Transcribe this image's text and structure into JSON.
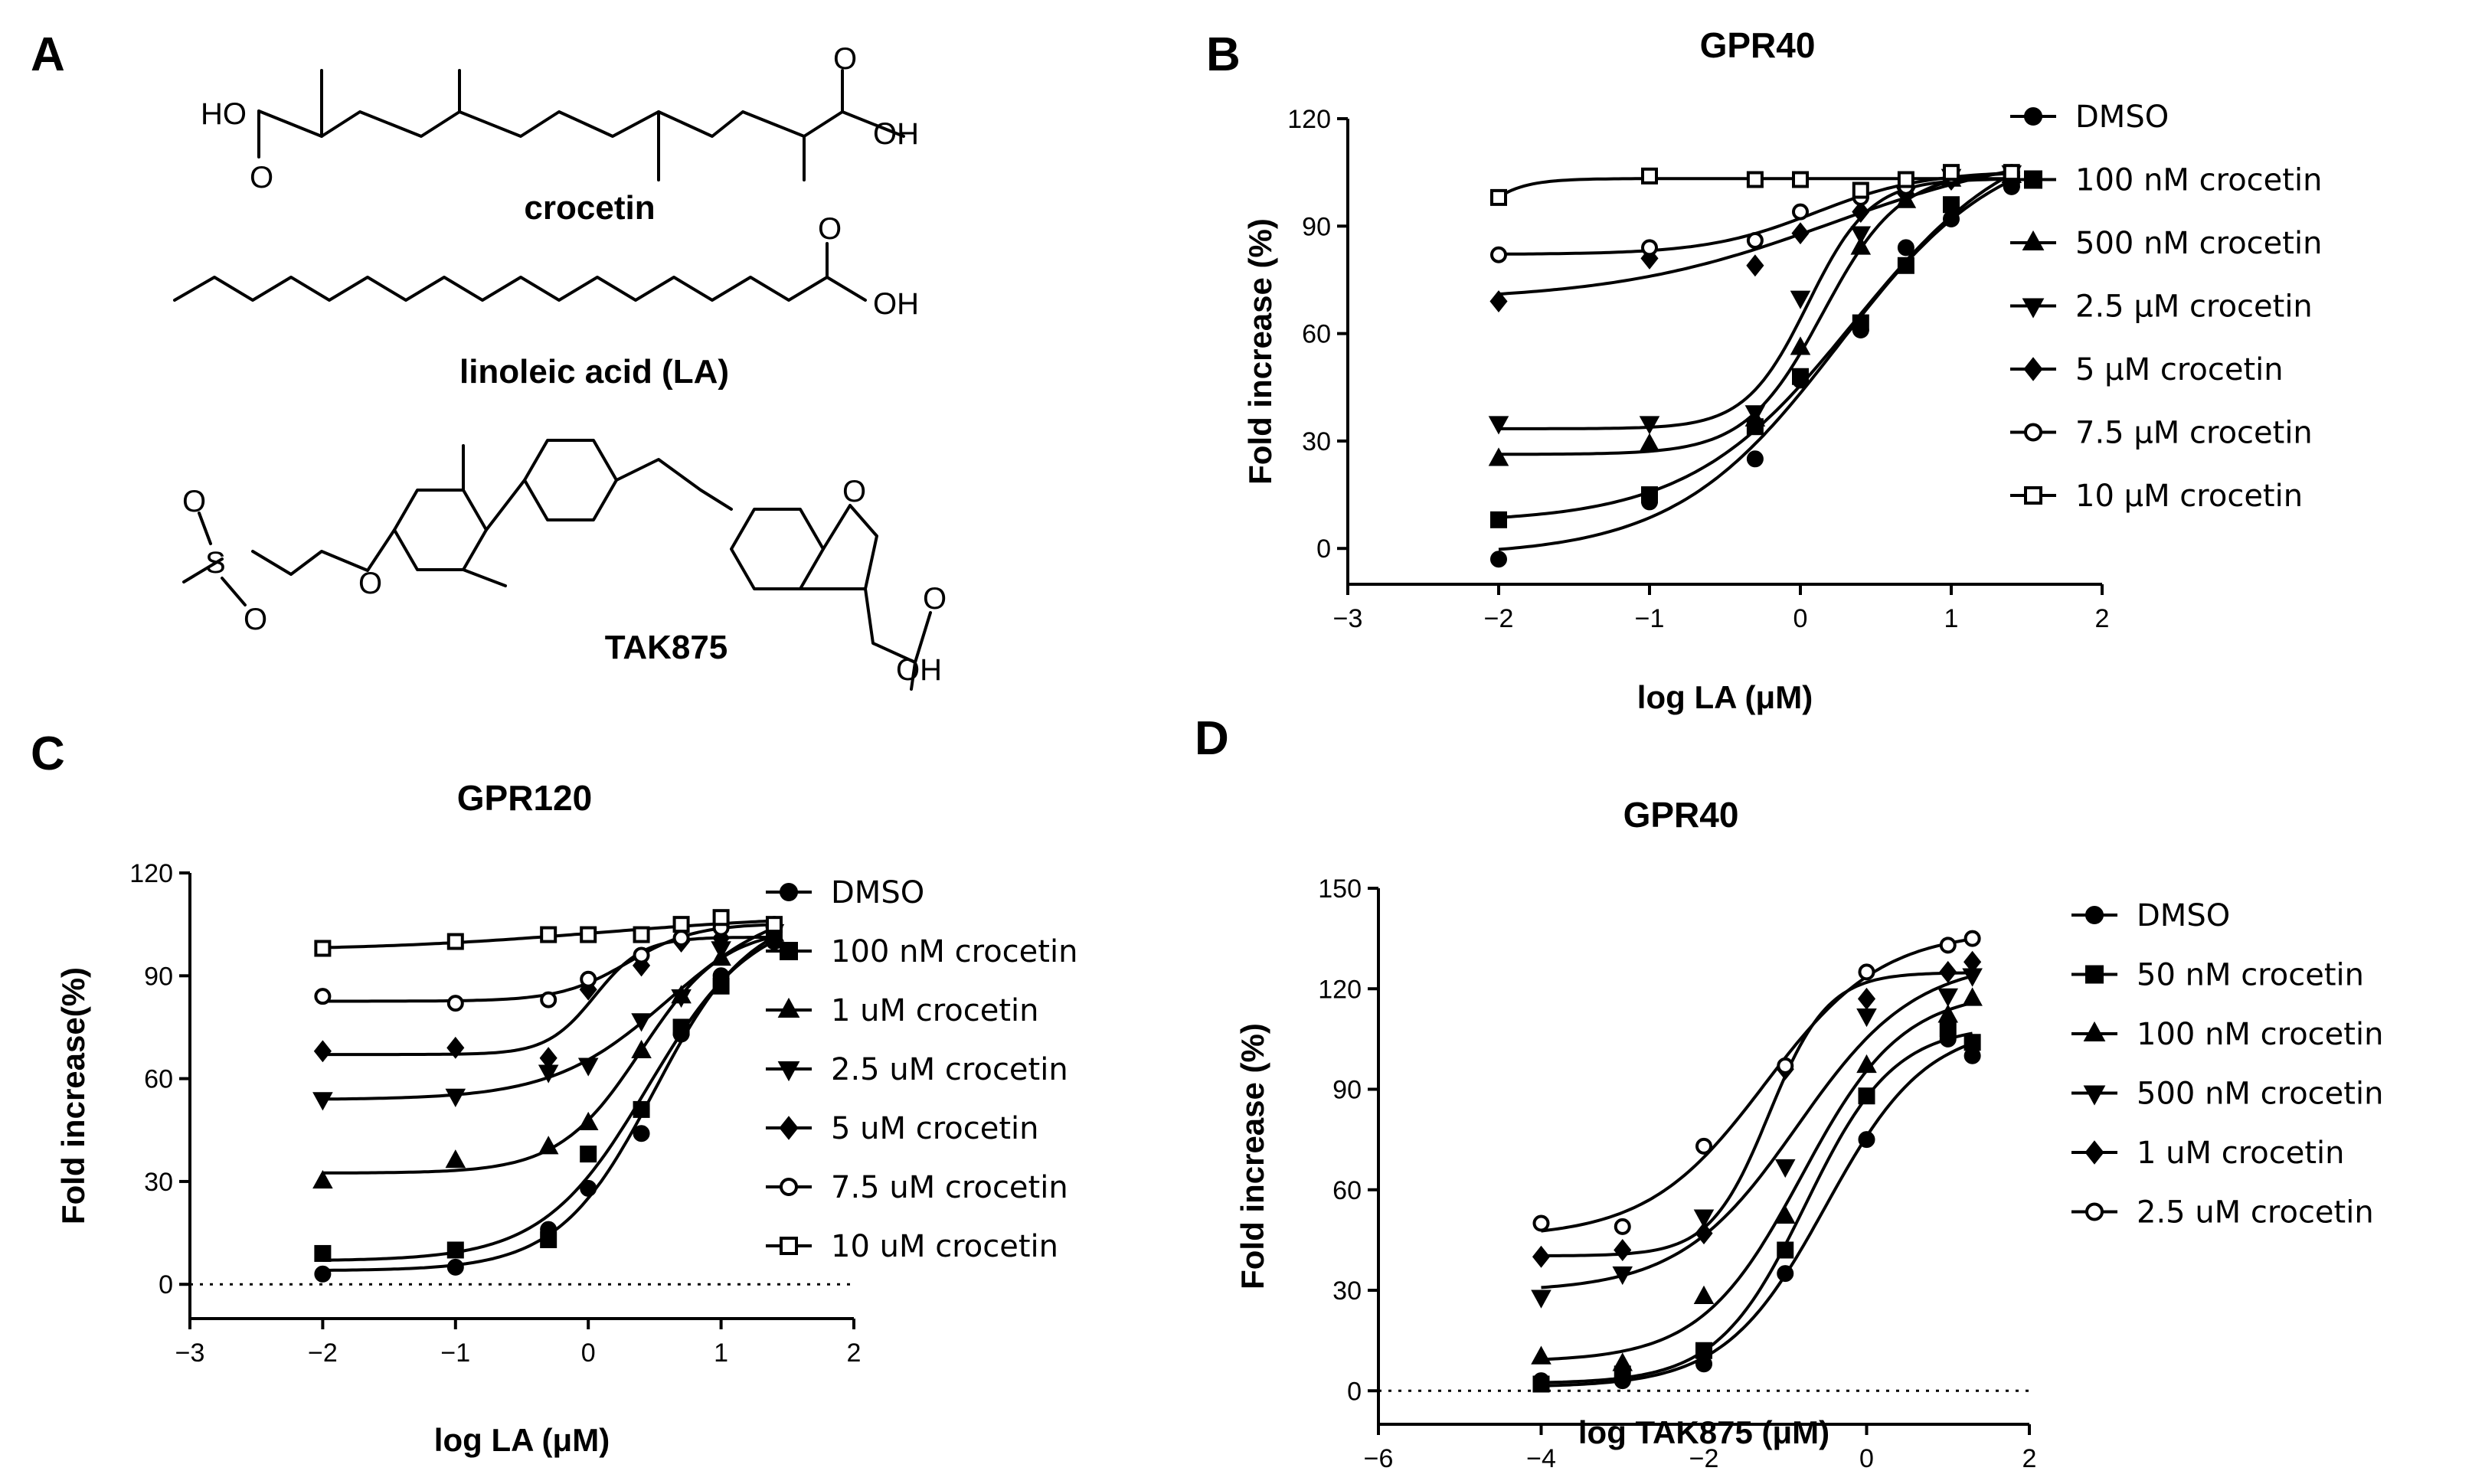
{
  "panels": {
    "a": {
      "letter": "A",
      "compounds": {
        "crocetin": {
          "name": "crocetin",
          "atoms": {
            "ho": "HO",
            "o_left": "O",
            "o_right": "O",
            "oh": "OH"
          }
        },
        "la": {
          "name": "linoleic acid (LA)",
          "atoms": {
            "o": "O",
            "oh": "OH"
          }
        },
        "tak": {
          "name": "TAK875",
          "atoms": {
            "s": "S",
            "o1": "O",
            "o2": "O",
            "o_ether": "O",
            "o_ring": "O",
            "o_acid": "O",
            "oh": "OH"
          }
        }
      }
    },
    "b": {
      "letter": "B"
    },
    "c": {
      "letter": "C"
    },
    "d": {
      "letter": "D"
    }
  },
  "chart_data": [
    {
      "id": "B",
      "type": "scatter",
      "fit": "sigmoidal dose-response",
      "title": "GPR40",
      "xlabel": "log LA (μM)",
      "ylabel": "Fold increase (%)",
      "xlim": [
        -3,
        2
      ],
      "ylim": [
        -10,
        120
      ],
      "xticks": [
        -3,
        -2,
        -1,
        0,
        1,
        2
      ],
      "yticks": [
        0,
        30,
        60,
        90,
        120
      ],
      "zero_line": false,
      "legend_position": "right",
      "x": [
        -2,
        -1,
        -0.3,
        0,
        0.4,
        0.7,
        1,
        1.4
      ],
      "series": [
        {
          "name": "DMSO",
          "marker": "circle-filled",
          "values": [
            -3,
            13,
            25,
            47,
            61,
            84,
            92,
            101
          ]
        },
        {
          "name": "100 nM crocetin",
          "marker": "square-filled",
          "values": [
            8,
            15,
            34,
            48,
            63,
            79,
            96,
            103
          ]
        },
        {
          "name": "500 nM crocetin",
          "marker": "triangle-up-filled",
          "values": [
            25,
            29,
            36,
            56,
            84,
            97,
            103,
            104
          ]
        },
        {
          "name": "2.5 μM crocetin",
          "marker": "triangle-down-filled",
          "values": [
            35,
            35,
            38,
            70,
            88,
            99,
            104,
            105
          ]
        },
        {
          "name": "5 μM crocetin",
          "marker": "diamond-filled",
          "values": [
            69,
            81,
            79,
            88,
            94,
            99,
            103,
            104
          ]
        },
        {
          "name": "7.5 μM crocetin",
          "marker": "circle-open",
          "values": [
            82,
            84,
            86,
            94,
            98,
            101,
            104,
            105
          ]
        },
        {
          "name": "10 μM crocetin",
          "marker": "square-open",
          "values": [
            98,
            104,
            103,
            103,
            100,
            103,
            105,
            105
          ]
        }
      ]
    },
    {
      "id": "C",
      "type": "scatter",
      "fit": "sigmoidal dose-response",
      "title": "GPR120",
      "xlabel": "log LA (μM)",
      "ylabel": "Fold increase(%)",
      "xlim": [
        -3,
        2
      ],
      "ylim": [
        -10,
        120
      ],
      "xticks": [
        -3,
        -2,
        -1,
        0,
        1,
        2
      ],
      "yticks": [
        0,
        30,
        60,
        90,
        120
      ],
      "zero_line": true,
      "legend_position": "right",
      "x": [
        -2,
        -1,
        -0.3,
        0,
        0.4,
        0.7,
        1,
        1.4
      ],
      "series": [
        {
          "name": "DMSO",
          "marker": "circle-filled",
          "values": [
            3,
            5,
            16,
            28,
            44,
            73,
            90,
            100
          ]
        },
        {
          "name": "100 nM crocetin",
          "marker": "square-filled",
          "values": [
            9,
            10,
            13,
            38,
            51,
            75,
            87,
            101
          ]
        },
        {
          "name": "1 uM crocetin",
          "marker": "triangle-up-filled",
          "values": [
            30,
            36,
            40,
            47,
            68,
            84,
            95,
            102
          ]
        },
        {
          "name": "2.5 uM crocetin",
          "marker": "triangle-down-filled",
          "values": [
            54,
            55,
            62,
            64,
            77,
            84,
            98,
            103
          ]
        },
        {
          "name": "5 uM crocetin",
          "marker": "diamond-filled",
          "values": [
            68,
            69,
            66,
            86,
            93,
            100,
            101,
            104
          ]
        },
        {
          "name": "7.5 uM crocetin",
          "marker": "circle-open",
          "values": [
            84,
            82,
            83,
            89,
            96,
            101,
            104,
            105
          ]
        },
        {
          "name": "10 uM crocetin",
          "marker": "square-open",
          "values": [
            98,
            100,
            102,
            102,
            102,
            105,
            107,
            105
          ]
        }
      ]
    },
    {
      "id": "D",
      "type": "scatter",
      "fit": "sigmoidal dose-response",
      "title": "GPR40",
      "xlabel": "log TAK875 (μM)",
      "ylabel": "Fold increase (%)",
      "xlim": [
        -6,
        2
      ],
      "ylim": [
        -10,
        150
      ],
      "xticks": [
        -6,
        -4,
        -2,
        0,
        2
      ],
      "yticks": [
        0,
        30,
        60,
        90,
        120,
        150
      ],
      "zero_line": true,
      "legend_position": "right",
      "x": [
        -4,
        -3,
        -2,
        -1,
        0,
        1,
        1.3
      ],
      "series": [
        {
          "name": "DMSO",
          "marker": "circle-filled",
          "values": [
            3,
            3,
            8,
            35,
            75,
            105,
            100
          ]
        },
        {
          "name": "50 nM crocetin",
          "marker": "square-filled",
          "values": [
            2,
            5,
            12,
            42,
            88,
            108,
            104
          ]
        },
        {
          "name": "100 nM crocetin",
          "marker": "triangle-up-filled",
          "values": [
            10,
            8,
            28,
            52,
            97,
            112,
            117
          ]
        },
        {
          "name": "500 nM crocetin",
          "marker": "triangle-down-filled",
          "values": [
            28,
            35,
            52,
            67,
            112,
            118,
            124
          ]
        },
        {
          "name": "1 uM crocetin",
          "marker": "diamond-filled",
          "values": [
            40,
            42,
            47,
            96,
            117,
            125,
            128
          ]
        },
        {
          "name": "2.5 uM crocetin",
          "marker": "circle-open",
          "values": [
            50,
            49,
            73,
            97,
            125,
            133,
            135
          ]
        }
      ]
    }
  ]
}
